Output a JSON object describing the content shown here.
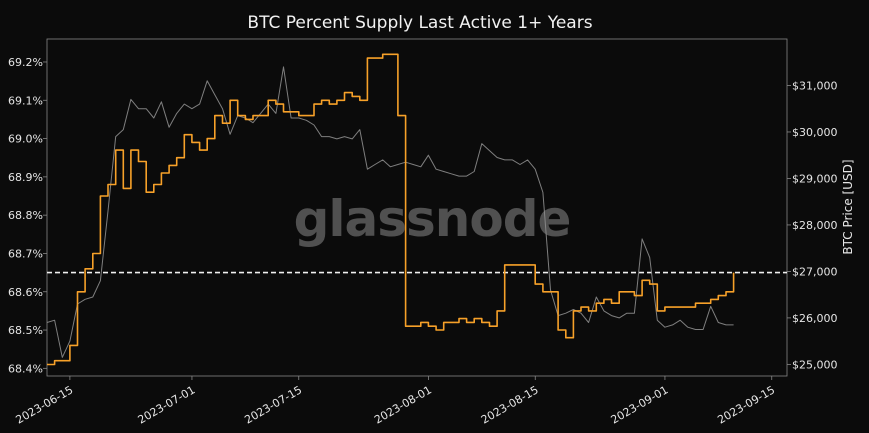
{
  "chart_data": {
    "type": "line",
    "title": "BTC Percent Supply Last Active 1+ Years",
    "watermark": "glassnode",
    "ylabel_left": "",
    "ylabel_right": "BTC Price [USD]",
    "left_axis": {
      "min": 68.38,
      "max": 69.26,
      "ticks": [
        68.4,
        68.5,
        68.6,
        68.7,
        68.8,
        68.9,
        69.0,
        69.1,
        69.2
      ],
      "tick_labels": [
        "68.4%",
        "68.5%",
        "68.6%",
        "68.7%",
        "68.8%",
        "68.9%",
        "69.0%",
        "69.1%",
        "69.2%"
      ]
    },
    "right_axis": {
      "min": 24750,
      "max": 32000,
      "ticks": [
        25000,
        26000,
        27000,
        28000,
        29000,
        30000,
        31000
      ],
      "tick_labels": [
        "$25,000",
        "$26,000",
        "$27,000",
        "$28,000",
        "$29,000",
        "$30,000",
        "$31,000"
      ]
    },
    "x_axis": {
      "start": "2023-06-12",
      "end": "2023-09-17",
      "ticks": [
        "2023-06-15",
        "2023-07-01",
        "2023-07-15",
        "2023-08-01",
        "2023-08-15",
        "2023-09-01",
        "2023-09-15"
      ]
    },
    "reference_line": {
      "value": 68.65,
      "axis": "left",
      "style": "dashed",
      "color": "#f0f0f0"
    },
    "grid": false,
    "colors": {
      "background": "#0b0b0b",
      "supply": "#f7a129",
      "price": "#8c8c8c",
      "axis": "#888888"
    },
    "series": [
      {
        "axis": "left",
        "color": "#f7a129",
        "points": [
          [
            "2023-06-12",
            68.41
          ],
          [
            "2023-06-13",
            68.42
          ],
          [
            "2023-06-14",
            68.42
          ],
          [
            "2023-06-15",
            68.46
          ],
          [
            "2023-06-16",
            68.6
          ],
          [
            "2023-06-17",
            68.66
          ],
          [
            "2023-06-18",
            68.7
          ],
          [
            "2023-06-19",
            68.85
          ],
          [
            "2023-06-20",
            68.88
          ],
          [
            "2023-06-21",
            68.97
          ],
          [
            "2023-06-22",
            68.87
          ],
          [
            "2023-06-23",
            68.97
          ],
          [
            "2023-06-24",
            68.94
          ],
          [
            "2023-06-25",
            68.86
          ],
          [
            "2023-06-26",
            68.88
          ],
          [
            "2023-06-27",
            68.91
          ],
          [
            "2023-06-28",
            68.93
          ],
          [
            "2023-06-29",
            68.95
          ],
          [
            "2023-06-30",
            69.01
          ],
          [
            "2023-07-01",
            68.99
          ],
          [
            "2023-07-02",
            68.97
          ],
          [
            "2023-07-03",
            69.0
          ],
          [
            "2023-07-04",
            69.06
          ],
          [
            "2023-07-05",
            69.04
          ],
          [
            "2023-07-06",
            69.1
          ],
          [
            "2023-07-07",
            69.06
          ],
          [
            "2023-07-08",
            69.05
          ],
          [
            "2023-07-09",
            69.06
          ],
          [
            "2023-07-10",
            69.06
          ],
          [
            "2023-07-11",
            69.1
          ],
          [
            "2023-07-12",
            69.09
          ],
          [
            "2023-07-13",
            69.07
          ],
          [
            "2023-07-14",
            69.07
          ],
          [
            "2023-07-15",
            69.06
          ],
          [
            "2023-07-16",
            69.06
          ],
          [
            "2023-07-17",
            69.09
          ],
          [
            "2023-07-18",
            69.1
          ],
          [
            "2023-07-19",
            69.09
          ],
          [
            "2023-07-20",
            69.1
          ],
          [
            "2023-07-21",
            69.12
          ],
          [
            "2023-07-22",
            69.11
          ],
          [
            "2023-07-23",
            69.1
          ],
          [
            "2023-07-24",
            69.21
          ],
          [
            "2023-07-25",
            69.21
          ],
          [
            "2023-07-26",
            69.22
          ],
          [
            "2023-07-27",
            69.22
          ],
          [
            "2023-07-28",
            69.06
          ],
          [
            "2023-07-29",
            68.51
          ],
          [
            "2023-07-30",
            68.51
          ],
          [
            "2023-07-31",
            68.52
          ],
          [
            "2023-08-01",
            68.51
          ],
          [
            "2023-08-02",
            68.5
          ],
          [
            "2023-08-03",
            68.52
          ],
          [
            "2023-08-04",
            68.52
          ],
          [
            "2023-08-05",
            68.53
          ],
          [
            "2023-08-06",
            68.52
          ],
          [
            "2023-08-07",
            68.53
          ],
          [
            "2023-08-08",
            68.52
          ],
          [
            "2023-08-09",
            68.51
          ],
          [
            "2023-08-10",
            68.55
          ],
          [
            "2023-08-11",
            68.67
          ],
          [
            "2023-08-12",
            68.67
          ],
          [
            "2023-08-13",
            68.67
          ],
          [
            "2023-08-14",
            68.67
          ],
          [
            "2023-08-15",
            68.62
          ],
          [
            "2023-08-16",
            68.6
          ],
          [
            "2023-08-17",
            68.6
          ],
          [
            "2023-08-18",
            68.5
          ],
          [
            "2023-08-19",
            68.48
          ],
          [
            "2023-08-20",
            68.55
          ],
          [
            "2023-08-21",
            68.56
          ],
          [
            "2023-08-22",
            68.55
          ],
          [
            "2023-08-23",
            68.57
          ],
          [
            "2023-08-24",
            68.58
          ],
          [
            "2023-08-25",
            68.57
          ],
          [
            "2023-08-26",
            68.6
          ],
          [
            "2023-08-27",
            68.6
          ],
          [
            "2023-08-28",
            68.59
          ],
          [
            "2023-08-29",
            68.63
          ],
          [
            "2023-08-30",
            68.62
          ],
          [
            "2023-08-31",
            68.55
          ],
          [
            "2023-09-01",
            68.56
          ],
          [
            "2023-09-02",
            68.56
          ],
          [
            "2023-09-03",
            68.56
          ],
          [
            "2023-09-04",
            68.56
          ],
          [
            "2023-09-05",
            68.57
          ],
          [
            "2023-09-06",
            68.57
          ],
          [
            "2023-09-07",
            68.58
          ],
          [
            "2023-09-08",
            68.59
          ],
          [
            "2023-09-09",
            68.6
          ],
          [
            "2023-09-10",
            68.65
          ]
        ]
      },
      {
        "axis": "right",
        "color": "#8c8c8c",
        "points": [
          [
            "2023-06-12",
            25900
          ],
          [
            "2023-06-13",
            25950
          ],
          [
            "2023-06-14",
            25150
          ],
          [
            "2023-06-15",
            25500
          ],
          [
            "2023-06-16",
            26300
          ],
          [
            "2023-06-17",
            26400
          ],
          [
            "2023-06-18",
            26450
          ],
          [
            "2023-06-19",
            26800
          ],
          [
            "2023-06-20",
            28300
          ],
          [
            "2023-06-21",
            29900
          ],
          [
            "2023-06-22",
            30050
          ],
          [
            "2023-06-23",
            30700
          ],
          [
            "2023-06-24",
            30500
          ],
          [
            "2023-06-25",
            30500
          ],
          [
            "2023-06-26",
            30300
          ],
          [
            "2023-06-27",
            30650
          ],
          [
            "2023-06-28",
            30100
          ],
          [
            "2023-06-29",
            30400
          ],
          [
            "2023-06-30",
            30600
          ],
          [
            "2023-07-01",
            30500
          ],
          [
            "2023-07-02",
            30600
          ],
          [
            "2023-07-03",
            31100
          ],
          [
            "2023-07-04",
            30800
          ],
          [
            "2023-07-05",
            30500
          ],
          [
            "2023-07-06",
            29950
          ],
          [
            "2023-07-07",
            30350
          ],
          [
            "2023-07-08",
            30300
          ],
          [
            "2023-07-09",
            30200
          ],
          [
            "2023-07-10",
            30400
          ],
          [
            "2023-07-11",
            30600
          ],
          [
            "2023-07-12",
            30400
          ],
          [
            "2023-07-13",
            31400
          ],
          [
            "2023-07-14",
            30300
          ],
          [
            "2023-07-15",
            30300
          ],
          [
            "2023-07-16",
            30250
          ],
          [
            "2023-07-17",
            30150
          ],
          [
            "2023-07-18",
            29900
          ],
          [
            "2023-07-19",
            29900
          ],
          [
            "2023-07-20",
            29850
          ],
          [
            "2023-07-21",
            29900
          ],
          [
            "2023-07-22",
            29850
          ],
          [
            "2023-07-23",
            30050
          ],
          [
            "2023-07-24",
            29200
          ],
          [
            "2023-07-25",
            29300
          ],
          [
            "2023-07-26",
            29400
          ],
          [
            "2023-07-27",
            29250
          ],
          [
            "2023-07-28",
            29300
          ],
          [
            "2023-07-29",
            29350
          ],
          [
            "2023-07-30",
            29300
          ],
          [
            "2023-07-31",
            29250
          ],
          [
            "2023-08-01",
            29500
          ],
          [
            "2023-08-02",
            29200
          ],
          [
            "2023-08-03",
            29150
          ],
          [
            "2023-08-04",
            29100
          ],
          [
            "2023-08-05",
            29050
          ],
          [
            "2023-08-06",
            29050
          ],
          [
            "2023-08-07",
            29150
          ],
          [
            "2023-08-08",
            29750
          ],
          [
            "2023-08-09",
            29600
          ],
          [
            "2023-08-10",
            29450
          ],
          [
            "2023-08-11",
            29400
          ],
          [
            "2023-08-12",
            29400
          ],
          [
            "2023-08-13",
            29300
          ],
          [
            "2023-08-14",
            29400
          ],
          [
            "2023-08-15",
            29200
          ],
          [
            "2023-08-16",
            28700
          ],
          [
            "2023-08-17",
            26600
          ],
          [
            "2023-08-18",
            26050
          ],
          [
            "2023-08-19",
            26100
          ],
          [
            "2023-08-20",
            26180
          ],
          [
            "2023-08-21",
            26100
          ],
          [
            "2023-08-22",
            25900
          ],
          [
            "2023-08-23",
            26450
          ],
          [
            "2023-08-24",
            26150
          ],
          [
            "2023-08-25",
            26050
          ],
          [
            "2023-08-26",
            26000
          ],
          [
            "2023-08-27",
            26100
          ],
          [
            "2023-08-28",
            26100
          ],
          [
            "2023-08-29",
            27700
          ],
          [
            "2023-08-30",
            27300
          ],
          [
            "2023-08-31",
            25950
          ],
          [
            "2023-09-01",
            25800
          ],
          [
            "2023-09-02",
            25850
          ],
          [
            "2023-09-03",
            25950
          ],
          [
            "2023-09-04",
            25800
          ],
          [
            "2023-09-05",
            25750
          ],
          [
            "2023-09-06",
            25750
          ],
          [
            "2023-09-07",
            26250
          ],
          [
            "2023-09-08",
            25900
          ],
          [
            "2023-09-09",
            25850
          ],
          [
            "2023-09-10",
            25850
          ]
        ]
      }
    ]
  }
}
